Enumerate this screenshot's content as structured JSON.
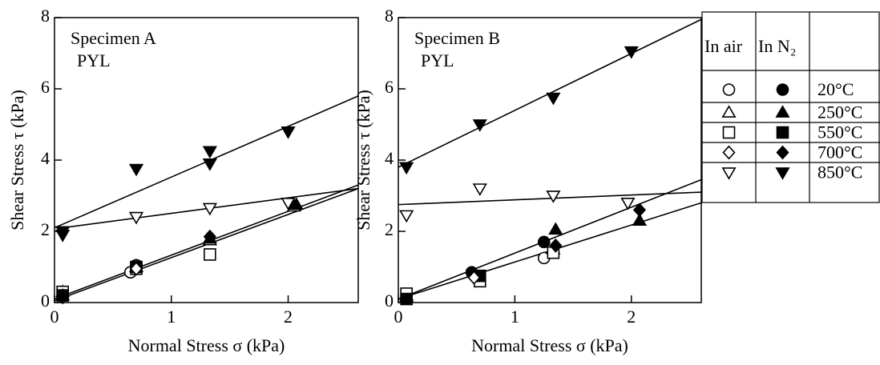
{
  "chart_data": [
    {
      "type": "scatter",
      "annotation": "Specimen A",
      "annotation2": "PYL",
      "xlabel": "Normal Stress σ (kPa)",
      "ylabel": "Shear Stress τ (kPa)",
      "xlim": [
        0,
        2.6
      ],
      "ylim": [
        0,
        8
      ],
      "xticks": [
        0,
        1,
        2
      ],
      "yticks": [
        0,
        2,
        4,
        6,
        8
      ],
      "series": [
        {
          "marker": "circle",
          "filled": false,
          "x": [
            0.07,
            0.65,
            0.7
          ],
          "values": [
            0.2,
            0.85,
            1.05
          ]
        },
        {
          "marker": "circle",
          "filled": true,
          "x": [
            0.07,
            0.7
          ],
          "values": [
            0.25,
            1.0
          ]
        },
        {
          "marker": "triangle-up",
          "filled": false,
          "x": [
            0.07,
            0.7,
            1.33,
            2.05
          ],
          "values": [
            0.3,
            1.0,
            1.75,
            2.7
          ]
        },
        {
          "marker": "triangle-up",
          "filled": true,
          "x": [
            0.07,
            1.33,
            2.07
          ],
          "values": [
            0.2,
            1.8,
            2.75
          ]
        },
        {
          "marker": "square",
          "filled": false,
          "x": [
            0.07,
            0.7,
            1.33
          ],
          "values": [
            0.3,
            0.95,
            1.35
          ]
        },
        {
          "marker": "square",
          "filled": true,
          "x": [
            0.07,
            0.7
          ],
          "values": [
            0.2,
            1.0
          ]
        },
        {
          "marker": "diamond",
          "filled": false,
          "x": [
            0.07,
            0.7
          ],
          "values": [
            0.2,
            0.95
          ]
        },
        {
          "marker": "diamond",
          "filled": true,
          "x": [
            0.07,
            1.33
          ],
          "values": [
            0.15,
            1.85
          ]
        },
        {
          "marker": "triangle-down",
          "filled": false,
          "x": [
            0.07,
            0.7,
            1.33,
            2.0
          ],
          "values": [
            2.0,
            2.4,
            2.65,
            2.8
          ]
        },
        {
          "marker": "triangle-down",
          "filled": true,
          "x": [
            0.07,
            0.07,
            0.7,
            1.33,
            1.33,
            2.0
          ],
          "values": [
            1.9,
            2.0,
            3.75,
            4.25,
            3.9,
            4.8
          ]
        }
      ],
      "lines": [
        {
          "x": [
            0,
            2.6
          ],
          "values": [
            2.1,
            5.8
          ]
        },
        {
          "x": [
            0.07,
            2.6
          ],
          "values": [
            2.1,
            3.2
          ]
        },
        {
          "x": [
            0,
            2.6
          ],
          "values": [
            0.1,
            3.3
          ]
        },
        {
          "x": [
            0,
            2.6
          ],
          "values": [
            0.05,
            3.2
          ]
        }
      ]
    },
    {
      "type": "scatter",
      "annotation": "Specimen B",
      "annotation2": "PYL",
      "xlabel": "Normal Stress σ (kPa)",
      "ylabel": "Shear Stress τ (kPa)",
      "xlim": [
        0,
        2.6
      ],
      "ylim": [
        0,
        8
      ],
      "xticks": [
        0,
        1,
        2
      ],
      "yticks": [
        0,
        2,
        4,
        6,
        8
      ],
      "series": [
        {
          "marker": "circle",
          "filled": false,
          "x": [
            0.07,
            1.25
          ],
          "values": [
            0.2,
            1.25
          ]
        },
        {
          "marker": "circle",
          "filled": true,
          "x": [
            0.07,
            0.63,
            1.25
          ],
          "values": [
            0.15,
            0.85,
            1.7
          ]
        },
        {
          "marker": "triangle-up",
          "filled": false,
          "x": [
            0.07,
            1.33
          ],
          "values": [
            0.2,
            1.5
          ]
        },
        {
          "marker": "triangle-up",
          "filled": true,
          "x": [
            0.07,
            1.35,
            2.07
          ],
          "values": [
            0.15,
            2.05,
            2.3
          ]
        },
        {
          "marker": "square",
          "filled": false,
          "x": [
            0.07,
            0.7,
            1.33
          ],
          "values": [
            0.25,
            0.6,
            1.4
          ]
        },
        {
          "marker": "square",
          "filled": true,
          "x": [
            0.07,
            0.7
          ],
          "values": [
            0.1,
            0.75
          ]
        },
        {
          "marker": "diamond",
          "filled": false,
          "x": [
            0.65
          ],
          "values": [
            0.7
          ]
        },
        {
          "marker": "diamond",
          "filled": true,
          "x": [
            1.35,
            2.07
          ],
          "values": [
            1.6,
            2.6
          ]
        },
        {
          "marker": "triangle-down",
          "filled": false,
          "x": [
            0.07,
            0.7,
            1.33,
            1.97
          ],
          "values": [
            2.45,
            3.2,
            3.0,
            2.8
          ]
        },
        {
          "marker": "triangle-down",
          "filled": true,
          "x": [
            0.07,
            0.7,
            1.33,
            2.0
          ],
          "values": [
            3.8,
            5.0,
            5.75,
            7.05
          ]
        }
      ],
      "lines": [
        {
          "x": [
            0,
            2.6
          ],
          "values": [
            3.8,
            7.95
          ]
        },
        {
          "x": [
            0,
            2.6
          ],
          "values": [
            2.75,
            3.1
          ]
        },
        {
          "x": [
            0,
            2.6
          ],
          "values": [
            0.1,
            3.45
          ]
        },
        {
          "x": [
            0,
            2.6
          ],
          "values": [
            0.1,
            2.8
          ]
        }
      ]
    }
  ],
  "legend": {
    "headers": [
      "In air",
      "In N₂"
    ],
    "rows": [
      {
        "label": "20°C",
        "marker": "circle"
      },
      {
        "label": "250°C",
        "marker": "triangle-up"
      },
      {
        "label": "550°C",
        "marker": "square"
      },
      {
        "label": "700°C",
        "marker": "diamond"
      },
      {
        "label": "850°C",
        "marker": "triangle-down"
      }
    ]
  }
}
